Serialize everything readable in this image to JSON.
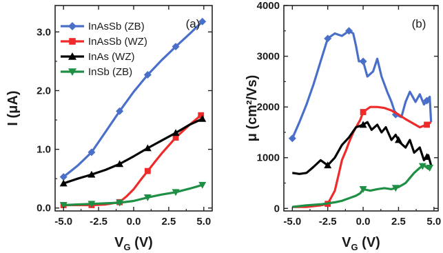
{
  "colors": {
    "InAsSb_ZB": "#4a6fc9",
    "InAsSb_WZ": "#ee2a2a",
    "InAs_WZ": "#000000",
    "InSb_ZB": "#1e8f45"
  },
  "chart_data": [
    {
      "type": "line",
      "panel_tag": "(a)",
      "xlabel": "V",
      "xlabel_sub": "G",
      "xlabel_unit": "(V)",
      "ylabel": "I (μA)",
      "xlim": [
        -5.6,
        5.6
      ],
      "ylim": [
        -0.05,
        3.45
      ],
      "x_ticks": [
        -5.0,
        -2.5,
        0.0,
        2.5,
        5.0
      ],
      "x_tick_labels": [
        "-5.0",
        "-2.5",
        "0.0",
        "2.5",
        "5.0"
      ],
      "y_ticks": [
        0.0,
        1.0,
        2.0,
        3.0
      ],
      "y_tick_labels": [
        "0.0",
        "1.0",
        "2.0",
        "3.0"
      ],
      "legend_position": "top-left",
      "series": [
        {
          "name": "InAsSb (ZB)",
          "color_key": "InAsSb_ZB",
          "marker": "diamond",
          "x": [
            -5,
            -4,
            -3,
            -2,
            -1,
            0,
            1,
            2,
            3,
            4,
            5
          ],
          "y": [
            0.53,
            0.72,
            0.95,
            1.3,
            1.65,
            1.98,
            2.27,
            2.52,
            2.75,
            2.97,
            3.2
          ],
          "marker_x": [
            -5,
            -3,
            -1,
            1,
            3,
            4.9
          ]
        },
        {
          "name": "InAsSb (WZ)",
          "color_key": "InAsSb_WZ",
          "marker": "square",
          "x": [
            -5,
            -4,
            -3,
            -2,
            -1,
            -0.5,
            0,
            0.5,
            1,
            1.5,
            2,
            3,
            4,
            4.8
          ],
          "y": [
            0.05,
            0.05,
            0.05,
            0.06,
            0.1,
            0.2,
            0.32,
            0.48,
            0.63,
            0.78,
            0.93,
            1.2,
            1.42,
            1.58
          ],
          "marker_x": [
            -5,
            -3,
            -1,
            1,
            3,
            4.8
          ]
        },
        {
          "name": "InAs (WZ)",
          "color_key": "InAs_WZ",
          "marker": "triangle",
          "x": [
            -5,
            -4,
            -3,
            -2,
            -1,
            0,
            1,
            2,
            3,
            4,
            5
          ],
          "y": [
            0.42,
            0.5,
            0.57,
            0.65,
            0.75,
            0.88,
            1.02,
            1.15,
            1.28,
            1.42,
            1.53
          ],
          "marker_x": [
            -5,
            -3,
            -1,
            1,
            3,
            4.9
          ]
        },
        {
          "name": "InSb (ZB)",
          "color_key": "InSb_ZB",
          "marker": "triangle-down",
          "x": [
            -5,
            -4,
            -3,
            -2,
            -1,
            0,
            1,
            2,
            3,
            4,
            5
          ],
          "y": [
            0.05,
            0.06,
            0.07,
            0.08,
            0.09,
            0.12,
            0.18,
            0.23,
            0.27,
            0.33,
            0.4
          ],
          "marker_x": [
            -5,
            -3,
            -1,
            1,
            3,
            4.9
          ]
        }
      ]
    },
    {
      "type": "line",
      "panel_tag": "(b)",
      "xlabel": "V",
      "xlabel_sub": "G",
      "xlabel_unit": "(V)",
      "ylabel": "μ (cm²/Vs)",
      "xlim": [
        -5.6,
        5.3
      ],
      "ylim": [
        -50,
        4000
      ],
      "x_ticks": [
        -5.0,
        -2.5,
        0.0,
        2.5,
        5.0
      ],
      "x_tick_labels": [
        "-5.0",
        "-2.5",
        "0.0",
        "2.5",
        "5.0"
      ],
      "y_ticks": [
        0,
        1000,
        2000,
        3000,
        4000
      ],
      "y_tick_labels": [
        "0",
        "1000",
        "2000",
        "3000",
        "4000"
      ],
      "series": [
        {
          "name": "InAsSb (ZB)",
          "color_key": "InAsSb_ZB",
          "marker": "diamond",
          "x": [
            -5,
            -4.5,
            -4,
            -3.5,
            -3,
            -2.5,
            -2,
            -1.5,
            -1,
            -0.7,
            -0.5,
            -0.3,
            0,
            0.3,
            0.7,
            1,
            1.3,
            1.7,
            2,
            2.3,
            2.7,
            3,
            3.3,
            3.7,
            4,
            4.3,
            4.7,
            4.8
          ],
          "y": [
            1380,
            1700,
            2050,
            2450,
            2900,
            3350,
            3450,
            3400,
            3500,
            3450,
            3200,
            2900,
            2900,
            2600,
            2700,
            2950,
            2600,
            2300,
            2100,
            1850,
            1800,
            2100,
            2300,
            2100,
            2250,
            2050,
            2200,
            1700
          ],
          "marker_x": [
            -5,
            -2.5,
            -1,
            0,
            2.3,
            4.5
          ]
        },
        {
          "name": "InAsSb (WZ)",
          "color_key": "InAsSb_WZ",
          "marker": "square",
          "x": [
            -5,
            -4,
            -3,
            -2.5,
            -2,
            -1.7,
            -1.5,
            -1.2,
            -1,
            -0.7,
            -0.5,
            -0.2,
            0,
            0.5,
            1,
            1.5,
            2,
            2.5,
            3,
            3.5,
            4,
            4.5,
            4.8
          ],
          "y": [
            30,
            30,
            60,
            90,
            350,
            700,
            950,
            1150,
            1300,
            1500,
            1600,
            1750,
            1900,
            2000,
            2000,
            1980,
            1930,
            1850,
            1760,
            1680,
            1600,
            1650,
            1700
          ],
          "marker_x": [
            -2.5,
            0,
            4.5
          ]
        },
        {
          "name": "InAs (WZ)",
          "color_key": "InAs_WZ",
          "marker": "triangle",
          "x": [
            -5,
            -4.5,
            -4,
            -3.5,
            -3,
            -2.5,
            -2,
            -1.5,
            -1,
            -0.5,
            0,
            0.3,
            0.6,
            1,
            1.3,
            1.6,
            2,
            2.3,
            2.6,
            3,
            3.3,
            3.6,
            4,
            4.3,
            4.6,
            4.8
          ],
          "y": [
            700,
            680,
            700,
            820,
            950,
            850,
            1000,
            1250,
            1400,
            1600,
            1650,
            1700,
            1550,
            1650,
            1500,
            1600,
            1350,
            1450,
            1300,
            1200,
            1350,
            1100,
            1200,
            950,
            1050,
            850
          ],
          "marker_x": [
            -2.5,
            0,
            2.5,
            4.5
          ]
        },
        {
          "name": "InSb (ZB)",
          "color_key": "InSb_ZB",
          "marker": "triangle-down",
          "x": [
            -5,
            -4,
            -3,
            -2,
            -1.5,
            -1,
            -0.5,
            -0.2,
            0,
            0.5,
            1,
            1.5,
            2,
            2.5,
            3,
            3.3,
            3.6,
            4,
            4.3,
            4.6,
            4.8
          ],
          "y": [
            30,
            60,
            80,
            120,
            150,
            200,
            250,
            300,
            380,
            350,
            380,
            400,
            380,
            420,
            500,
            600,
            700,
            800,
            850,
            780,
            820
          ],
          "marker_x": [
            0,
            2.3,
            4.2,
            4.7
          ]
        }
      ]
    }
  ]
}
